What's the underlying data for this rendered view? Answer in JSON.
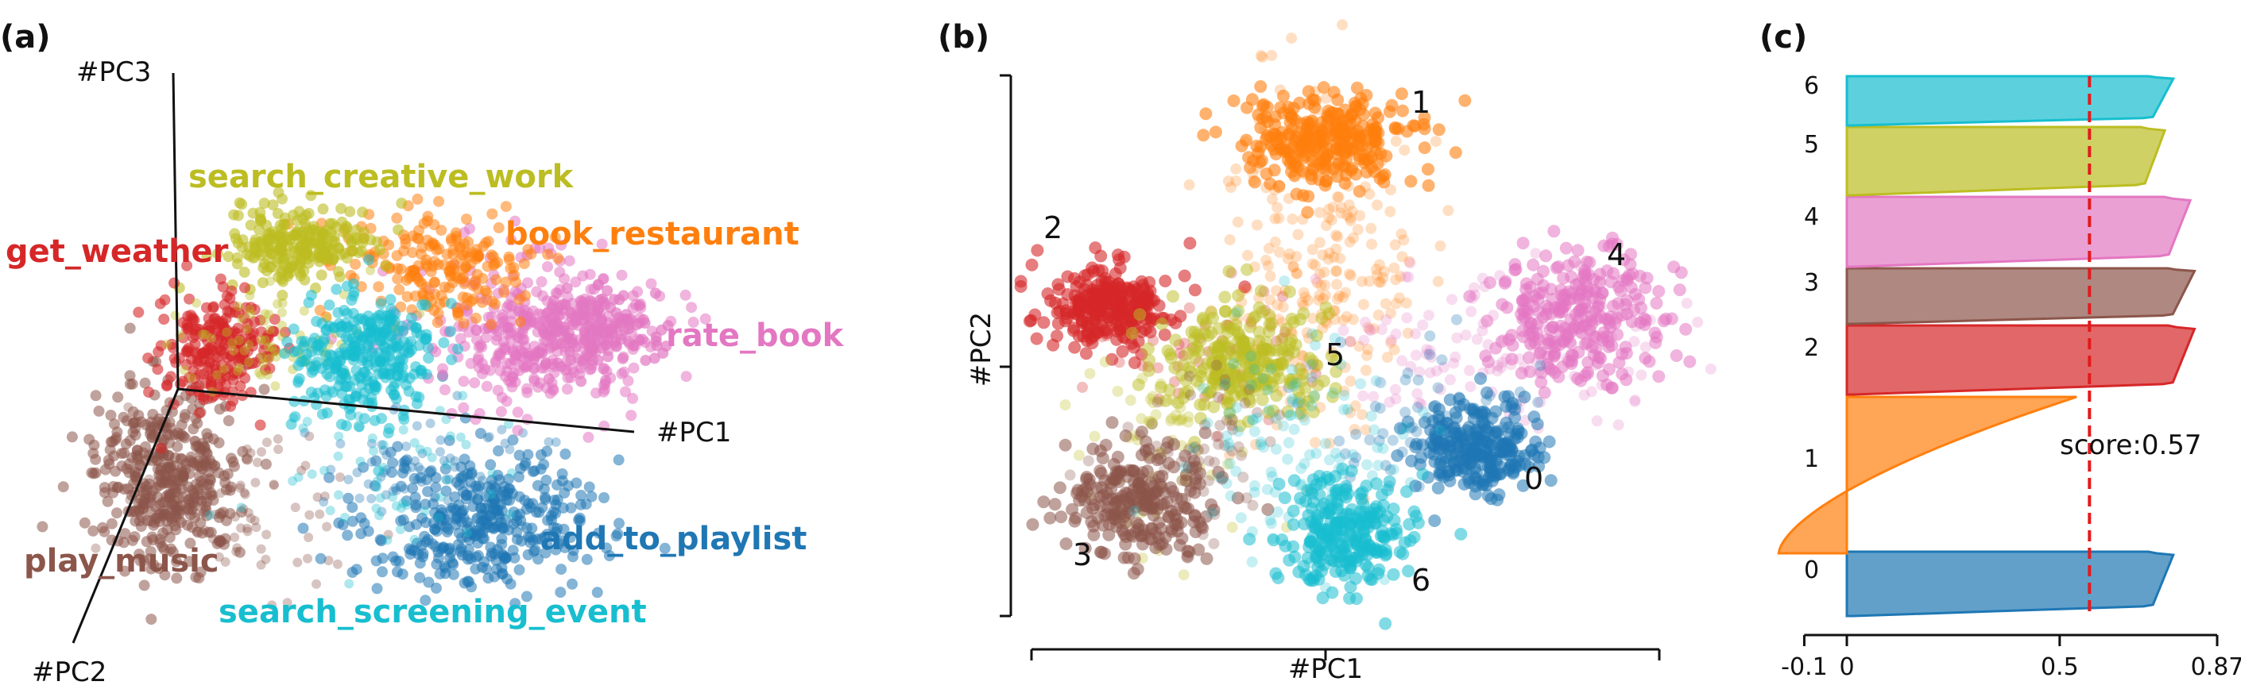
{
  "panels": {
    "a": "(a)",
    "b": "(b)",
    "c": "(c)"
  },
  "colors": {
    "add_to_playlist": "#1f77b4",
    "book_restaurant": "#ff7f0e",
    "get_weather": "#d62728",
    "play_music": "#8c564b",
    "rate_book": "#e377c2",
    "search_creative_work": "#bcbd22",
    "search_screening_event": "#17becf"
  },
  "chart_data": [
    {
      "panel": "(a)",
      "type": "scatter",
      "projection": "3d",
      "axis_labels": [
        "#PC1",
        "#PC2",
        "#PC3"
      ],
      "clusters": [
        {
          "name": "search_creative_work",
          "color": "#bcbd22"
        },
        {
          "name": "book_restaurant",
          "color": "#ff7f0e"
        },
        {
          "name": "get_weather",
          "color": "#d62728"
        },
        {
          "name": "rate_book",
          "color": "#e377c2"
        },
        {
          "name": "play_music",
          "color": "#8c564b"
        },
        {
          "name": "add_to_playlist",
          "color": "#1f77b4"
        },
        {
          "name": "search_screening_event",
          "color": "#17becf"
        }
      ]
    },
    {
      "panel": "(b)",
      "type": "scatter",
      "xlabel": "#PC1",
      "ylabel": "#PC2",
      "clusters": [
        {
          "id": "0",
          "color": "#1f77b4"
        },
        {
          "id": "1",
          "color": "#ff7f0e"
        },
        {
          "id": "2",
          "color": "#d62728"
        },
        {
          "id": "3",
          "color": "#8c564b"
        },
        {
          "id": "4",
          "color": "#e377c2"
        },
        {
          "id": "5",
          "color": "#bcbd22"
        },
        {
          "id": "6",
          "color": "#17becf"
        }
      ]
    },
    {
      "panel": "(c)",
      "type": "area",
      "description_kind": "silhouette",
      "xlim": [
        -0.1,
        0.87
      ],
      "xticks": [
        "-0.1",
        "0",
        "0.5",
        "0.87"
      ],
      "xtick_values": [
        -0.1,
        0,
        0.5,
        0.87
      ],
      "average_line": {
        "value": 0.57,
        "label": "score:0.57",
        "color": "#e31a1c"
      },
      "clusters": [
        {
          "label": "0",
          "color": "#1f77b4",
          "max": 0.77,
          "min": 0.0
        },
        {
          "label": "1",
          "color": "#ff7f0e",
          "max": 0.54,
          "min": -0.16
        },
        {
          "label": "2",
          "color": "#d62728",
          "max": 0.82,
          "min": 0.0
        },
        {
          "label": "3",
          "color": "#8c564b",
          "max": 0.82,
          "min": 0.0
        },
        {
          "label": "4",
          "color": "#e377c2",
          "max": 0.81,
          "min": 0.0
        },
        {
          "label": "5",
          "color": "#bcbd22",
          "max": 0.75,
          "min": -0.02
        },
        {
          "label": "6",
          "color": "#17becf",
          "max": 0.77,
          "min": 0.0
        }
      ]
    }
  ]
}
